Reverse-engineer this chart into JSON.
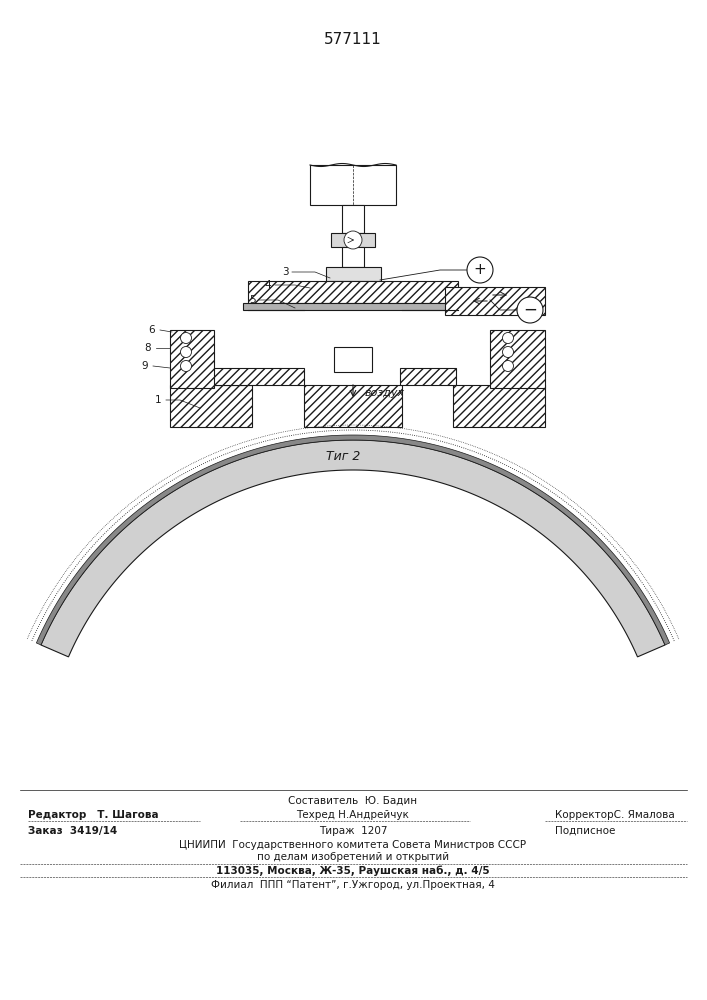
{
  "patent_number": "577111",
  "fig_label": "Τиг 2",
  "vozdukh_label": "воздух",
  "line_color": "#1a1a1a",
  "footer": {
    "sostavitel": "Составитель  Ю. Бадин",
    "redaktor": "Редактор   Т. Шагова",
    "tekhred": "Техред Н.Андрейчук",
    "korrektor": "КорректорС. Ямалова",
    "zakaz": "Заказ  3419/14",
    "tirazh": "Тираж  1207",
    "podpisnoe": "Подписное",
    "tsniipil1": "ЦНИИПИ  Государственного комитета Совета Министров СССР",
    "tsniipil2": "по делам изобретений и открытий",
    "address": "113035, Москва, Ж-35, Раушская наб., д. 4/5",
    "filial": "Филиал  ППП “Патент”, г.Ужгород, ул.Проектная, 4"
  }
}
